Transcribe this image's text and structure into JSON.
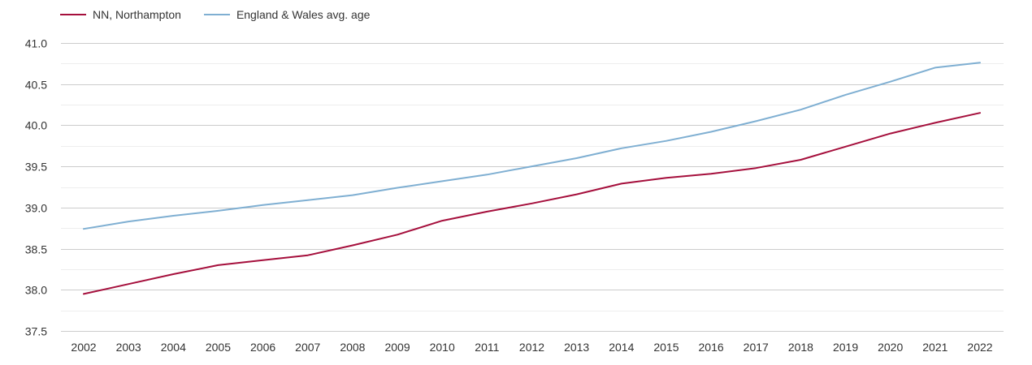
{
  "chart_data": {
    "type": "line",
    "title": "",
    "xlabel": "",
    "ylabel": "",
    "x": [
      "2002",
      "2003",
      "2004",
      "2005",
      "2006",
      "2007",
      "2008",
      "2009",
      "2010",
      "2011",
      "2012",
      "2013",
      "2014",
      "2015",
      "2016",
      "2017",
      "2018",
      "2019",
      "2020",
      "2021",
      "2022"
    ],
    "ylim": [
      37.5,
      41.0
    ],
    "yticks": [
      "37.5",
      "38.0",
      "38.5",
      "39.0",
      "39.5",
      "40.0",
      "40.5",
      "41.0"
    ],
    "grid": true,
    "legend_position": "top-left",
    "series": [
      {
        "name": "NN, Northampton",
        "color": "#A50F3C",
        "values": [
          37.95,
          38.07,
          38.19,
          38.3,
          38.36,
          38.42,
          38.54,
          38.67,
          38.84,
          38.95,
          39.05,
          39.16,
          39.29,
          39.36,
          39.41,
          39.48,
          39.58,
          39.74,
          39.9,
          40.03,
          40.15
        ]
      },
      {
        "name": "England & Wales avg. age",
        "color": "#7FAFD2",
        "values": [
          38.74,
          38.83,
          38.9,
          38.96,
          39.03,
          39.09,
          39.15,
          39.24,
          39.32,
          39.4,
          39.5,
          39.6,
          39.72,
          39.81,
          39.92,
          40.05,
          40.19,
          40.37,
          40.53,
          40.7,
          40.76
        ]
      }
    ]
  }
}
